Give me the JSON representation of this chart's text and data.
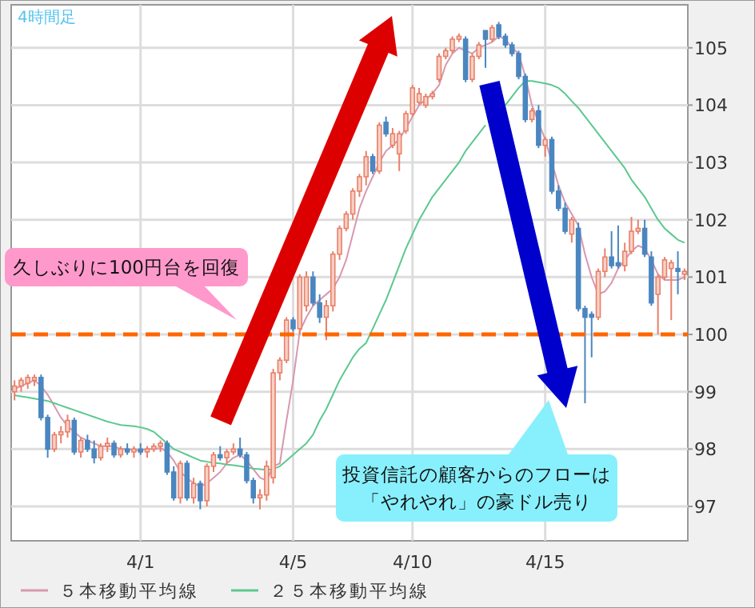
{
  "chart_data": {
    "type": "candlestick",
    "title": "4時間足",
    "categories": [
      null,
      null,
      null,
      null,
      null,
      null,
      null,
      null,
      null,
      null,
      null,
      null,
      null,
      null,
      null,
      null,
      null,
      null,
      null,
      "4/1",
      null,
      null,
      null,
      null,
      null,
      null,
      null,
      null,
      null,
      null,
      null,
      null,
      null,
      null,
      null,
      null,
      null,
      null,
      null,
      null,
      null,
      null,
      "4/5",
      null,
      null,
      null,
      null,
      null,
      null,
      null,
      null,
      null,
      null,
      null,
      null,
      null,
      null,
      null,
      null,
      null,
      "4/10",
      null,
      null,
      null,
      null,
      null,
      null,
      null,
      null,
      null,
      null,
      null,
      null,
      null,
      null,
      null,
      null,
      null,
      null,
      null,
      "4/15",
      null,
      null,
      null,
      null,
      null,
      null,
      null,
      null,
      null,
      null,
      null,
      null,
      null,
      null,
      null,
      null,
      null,
      null,
      null,
      null,
      null
    ],
    "ohlc": [
      [
        99.0,
        99.2,
        98.85,
        99.1
      ],
      [
        99.1,
        99.25,
        99.0,
        99.2
      ],
      [
        99.15,
        99.3,
        99.05,
        99.25
      ],
      [
        99.2,
        99.3,
        99.1,
        99.25
      ],
      [
        99.25,
        99.3,
        98.5,
        98.55
      ],
      [
        98.55,
        98.6,
        97.85,
        98.0
      ],
      [
        98.0,
        98.3,
        97.95,
        98.25
      ],
      [
        98.25,
        98.4,
        98.1,
        98.3
      ],
      [
        98.3,
        98.6,
        98.2,
        98.5
      ],
      [
        98.5,
        98.55,
        97.9,
        97.95
      ],
      [
        97.95,
        98.2,
        97.85,
        98.15
      ],
      [
        98.15,
        98.25,
        97.95,
        98.0
      ],
      [
        98.0,
        98.15,
        97.75,
        97.85
      ],
      [
        97.85,
        98.1,
        97.8,
        98.05
      ],
      [
        98.05,
        98.2,
        97.95,
        98.1
      ],
      [
        98.1,
        98.15,
        97.85,
        97.9
      ],
      [
        97.9,
        98.05,
        97.85,
        98.0
      ],
      [
        98.0,
        98.1,
        97.9,
        97.95
      ],
      [
        97.95,
        98.05,
        97.85,
        98.0
      ],
      [
        98.0,
        98.1,
        97.9,
        97.95
      ],
      [
        97.95,
        98.05,
        97.85,
        98.0
      ],
      [
        98.0,
        98.1,
        97.95,
        98.05
      ],
      [
        98.05,
        98.15,
        97.95,
        98.1
      ],
      [
        98.1,
        98.15,
        97.55,
        97.6
      ],
      [
        97.6,
        97.7,
        97.1,
        97.15
      ],
      [
        97.15,
        97.8,
        97.05,
        97.75
      ],
      [
        97.75,
        97.8,
        97.1,
        97.15
      ],
      [
        97.15,
        97.5,
        97.05,
        97.4
      ],
      [
        97.4,
        97.45,
        96.95,
        97.1
      ],
      [
        97.1,
        97.75,
        97.0,
        97.7
      ],
      [
        97.7,
        97.95,
        97.6,
        97.9
      ],
      [
        97.9,
        98.05,
        97.8,
        97.85
      ],
      [
        97.85,
        98.0,
        97.75,
        97.95
      ],
      [
        97.95,
        98.1,
        97.9,
        98.0
      ],
      [
        98.0,
        98.2,
        97.85,
        97.9
      ],
      [
        97.9,
        97.95,
        97.4,
        97.45
      ],
      [
        97.45,
        97.5,
        97.05,
        97.15
      ],
      [
        97.15,
        97.3,
        96.95,
        97.2
      ],
      [
        97.2,
        97.8,
        97.1,
        97.7
      ],
      [
        97.5,
        99.4,
        97.4,
        99.33
      ],
      [
        99.33,
        99.6,
        99.2,
        99.55
      ],
      [
        99.55,
        100.3,
        99.5,
        100.25
      ],
      [
        100.25,
        100.3,
        100.05,
        100.1
      ],
      [
        100.1,
        101.05,
        100.0,
        101.0
      ],
      [
        100.5,
        101.1,
        100.4,
        101.0
      ],
      [
        101.0,
        101.1,
        100.5,
        100.55
      ],
      [
        100.55,
        100.7,
        100.2,
        100.3
      ],
      [
        100.3,
        100.6,
        99.9,
        100.5
      ],
      [
        100.5,
        101.45,
        100.4,
        101.4
      ],
      [
        101.4,
        101.9,
        101.3,
        101.85
      ],
      [
        101.85,
        102.15,
        101.8,
        102.1
      ],
      [
        102.1,
        102.55,
        102.0,
        102.5
      ],
      [
        102.5,
        102.8,
        102.4,
        102.75
      ],
      [
        102.75,
        103.2,
        102.6,
        103.1
      ],
      [
        103.1,
        103.15,
        102.8,
        102.85
      ],
      [
        102.85,
        103.7,
        102.8,
        103.65
      ],
      [
        103.7,
        103.8,
        103.45,
        103.5
      ],
      [
        103.3,
        103.6,
        103.25,
        103.5
      ],
      [
        103.15,
        103.55,
        102.85,
        103.5
      ],
      [
        103.55,
        103.9,
        103.5,
        103.85
      ],
      [
        103.85,
        104.35,
        103.8,
        104.3
      ],
      [
        104.05,
        104.3,
        104.0,
        104.2
      ],
      [
        104.0,
        104.2,
        103.95,
        104.15
      ],
      [
        104.15,
        104.25,
        104.1,
        104.2
      ],
      [
        104.45,
        104.9,
        104.4,
        104.85
      ],
      [
        104.85,
        105.0,
        104.8,
        104.95
      ],
      [
        104.95,
        105.2,
        104.9,
        105.15
      ],
      [
        105.15,
        105.25,
        105.1,
        105.2
      ],
      [
        105.15,
        105.2,
        104.4,
        104.45
      ],
      [
        104.45,
        104.9,
        104.4,
        104.85
      ],
      [
        104.85,
        105.1,
        104.8,
        105.05
      ],
      [
        105.3,
        105.3,
        104.65,
        105.15
      ],
      [
        105.15,
        105.4,
        105.1,
        105.35
      ],
      [
        105.4,
        105.45,
        105.15,
        105.2
      ],
      [
        105.2,
        105.25,
        105.0,
        105.05
      ],
      [
        105.05,
        105.1,
        104.85,
        104.9
      ],
      [
        104.9,
        104.95,
        104.45,
        104.5
      ],
      [
        104.5,
        104.55,
        103.7,
        103.75
      ],
      [
        103.75,
        103.95,
        103.7,
        103.9
      ],
      [
        103.9,
        104.0,
        103.25,
        103.3
      ],
      [
        103.3,
        103.45,
        103.1,
        103.4
      ],
      [
        103.4,
        103.45,
        102.45,
        102.5
      ],
      [
        102.5,
        102.6,
        102.15,
        102.2
      ],
      [
        102.2,
        102.3,
        101.75,
        101.8
      ],
      [
        101.75,
        102.05,
        101.6,
        102.0
      ],
      [
        101.85,
        101.95,
        100.4,
        100.45
      ],
      [
        100.45,
        100.5,
        98.8,
        100.3
      ],
      [
        100.35,
        100.4,
        99.6,
        100.3
      ],
      [
        100.3,
        101.15,
        100.25,
        101.1
      ],
      [
        101.1,
        101.5,
        101.0,
        101.35
      ],
      [
        101.35,
        101.8,
        101.15,
        101.2
      ],
      [
        101.25,
        101.9,
        101.15,
        101.2
      ],
      [
        101.2,
        101.6,
        101.1,
        101.45
      ],
      [
        101.45,
        102.05,
        101.4,
        101.8
      ],
      [
        101.8,
        102.0,
        101.75,
        101.85
      ],
      [
        101.85,
        102.0,
        101.35,
        101.4
      ],
      [
        101.35,
        101.45,
        100.5,
        100.55
      ],
      [
        100.7,
        101.05,
        100.0,
        101.0
      ],
      [
        101.0,
        101.35,
        100.95,
        101.3
      ],
      [
        101.15,
        101.3,
        100.25,
        101.25
      ],
      [
        101.15,
        101.45,
        100.7,
        101.1
      ],
      [
        101.05,
        101.15,
        100.95,
        101.1
      ]
    ],
    "series": [
      {
        "type": "line",
        "name": "５本移動平均線",
        "color": "#d898b0",
        "values": [
          99.05,
          99.1,
          99.15,
          99.2,
          99.1,
          98.95,
          98.75,
          98.55,
          98.4,
          98.3,
          98.2,
          98.15,
          98.1,
          98.05,
          98.05,
          98.05,
          98.0,
          98.0,
          97.98,
          97.98,
          98.0,
          98.0,
          98.02,
          97.95,
          97.8,
          97.6,
          97.5,
          97.4,
          97.35,
          97.4,
          97.5,
          97.6,
          97.75,
          97.85,
          97.9,
          97.8,
          97.65,
          97.5,
          97.45,
          97.7,
          97.75,
          98.5,
          99.2,
          100.05,
          100.3,
          100.5,
          100.6,
          100.7,
          100.8,
          101.0,
          101.3,
          101.75,
          102.2,
          102.5,
          102.75,
          103.0,
          103.2,
          103.3,
          103.4,
          103.6,
          103.8,
          104.0,
          104.1,
          104.2,
          104.35,
          104.7,
          104.9,
          105.0,
          104.95,
          104.9,
          105.0,
          105.05,
          105.1,
          105.2,
          105.15,
          105.0,
          104.9,
          104.5,
          104.0,
          103.7,
          103.4,
          103.0,
          102.6,
          102.3,
          102.1,
          101.9,
          101.4,
          101.0,
          100.7,
          100.75,
          100.9,
          101.15,
          101.3,
          101.45,
          101.55,
          101.5,
          101.3,
          101.05,
          100.95,
          100.95,
          100.95,
          101.0
        ]
      },
      {
        "type": "line",
        "name": "２５本移動平均線",
        "color": "#5cc890",
        "values": [
          98.94,
          98.92,
          98.9,
          98.88,
          98.86,
          98.84,
          98.8,
          98.76,
          98.72,
          98.68,
          98.64,
          98.6,
          98.56,
          98.52,
          98.48,
          98.45,
          98.42,
          98.41,
          98.4,
          98.38,
          98.35,
          98.3,
          98.2,
          98.1,
          98.0,
          97.95,
          97.9,
          97.85,
          97.8,
          97.78,
          97.76,
          97.75,
          97.73,
          97.72,
          97.7,
          97.68,
          97.66,
          97.65,
          97.64,
          97.65,
          97.7,
          97.8,
          97.9,
          98.0,
          98.1,
          98.25,
          98.5,
          98.7,
          98.95,
          99.2,
          99.4,
          99.6,
          99.75,
          99.85,
          100.1,
          100.35,
          100.6,
          100.9,
          101.2,
          101.5,
          101.75,
          102.0,
          102.2,
          102.4,
          102.55,
          102.7,
          102.85,
          103.0,
          103.2,
          103.35,
          103.5,
          103.65,
          null,
          null,
          104.0,
          104.15,
          104.3,
          104.42,
          104.42,
          104.4,
          104.38,
          104.35,
          104.3,
          104.2,
          104.07,
          103.95,
          103.8,
          103.65,
          103.5,
          103.35,
          103.2,
          103.05,
          102.9,
          102.7,
          102.55,
          102.4,
          102.2,
          102.0,
          101.85,
          101.75,
          101.65,
          101.6
        ]
      }
    ],
    "ylim": [
      96.4,
      105.75
    ],
    "yticks": [
      97,
      98,
      99,
      100,
      101,
      102,
      103,
      104,
      105
    ],
    "ref_lines": [
      {
        "axis": "y",
        "value": 100,
        "color": "#ff6600",
        "line_style": "dashed"
      }
    ],
    "annotations": [
      "久しぶりに100円台を回復",
      "投資信託の顧客からのフローは",
      "「やれやれ」の豪ドル売り"
    ],
    "grid": true,
    "legend": "bottom"
  }
}
